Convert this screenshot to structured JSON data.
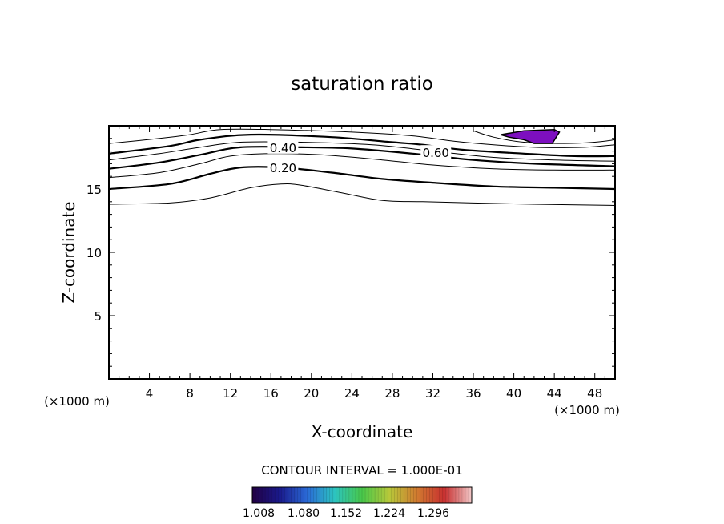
{
  "chart_data": {
    "type": "contour",
    "title": "saturation ratio",
    "xlabel": "X-coordinate",
    "ylabel": "Z-coordinate",
    "x_unit_left": "(×1000 m)",
    "x_unit_right": "(×1000 m)",
    "xlim": [
      0,
      50
    ],
    "ylim": [
      0,
      20
    ],
    "xticks": [
      "4",
      "8",
      "12",
      "16",
      "20",
      "24",
      "28",
      "32",
      "36",
      "40",
      "44",
      "48"
    ],
    "yticks": [
      "5",
      "10",
      "15"
    ],
    "contour_interval": "CONTOUR INTERVAL = 1.000E-01",
    "contour_labels": [
      {
        "text": "0.40",
        "x": 17.2,
        "y": 18.3
      },
      {
        "text": "0.20",
        "x": 17.2,
        "y": 16.7
      },
      {
        "text": "0.60",
        "x": 32.3,
        "y": 17.9
      }
    ],
    "contours": [
      {
        "level": "0.1",
        "bold": false,
        "points": [
          [
            0,
            13.8
          ],
          [
            6,
            13.9
          ],
          [
            10,
            14.3
          ],
          [
            14,
            15.1
          ],
          [
            17,
            15.4
          ],
          [
            19,
            15.3
          ],
          [
            23,
            14.7
          ],
          [
            27,
            14.1
          ],
          [
            31,
            14.0
          ],
          [
            36,
            13.9
          ],
          [
            42,
            13.8
          ],
          [
            50,
            13.7
          ]
        ]
      },
      {
        "level": "0.2",
        "bold": true,
        "points": [
          [
            0,
            15.0
          ],
          [
            6,
            15.4
          ],
          [
            10,
            16.2
          ],
          [
            13,
            16.7
          ],
          [
            17,
            16.7
          ],
          [
            22,
            16.3
          ],
          [
            27,
            15.8
          ],
          [
            32,
            15.5
          ],
          [
            38,
            15.2
          ],
          [
            44,
            15.1
          ],
          [
            50,
            15.0
          ]
        ]
      },
      {
        "level": "0.3",
        "bold": false,
        "points": [
          [
            0,
            15.9
          ],
          [
            5,
            16.3
          ],
          [
            9,
            17.0
          ],
          [
            12,
            17.6
          ],
          [
            16,
            17.8
          ],
          [
            21,
            17.7
          ],
          [
            27,
            17.3
          ],
          [
            32,
            16.9
          ],
          [
            38,
            16.6
          ],
          [
            44,
            16.5
          ],
          [
            50,
            16.5
          ]
        ]
      },
      {
        "level": "0.4",
        "bold": true,
        "points": [
          [
            0,
            16.6
          ],
          [
            5,
            17.1
          ],
          [
            9,
            17.7
          ],
          [
            13,
            18.3
          ],
          [
            19,
            18.3
          ],
          [
            24,
            18.2
          ],
          [
            30,
            17.8
          ],
          [
            36,
            17.3
          ],
          [
            42,
            17.0
          ],
          [
            50,
            16.8
          ]
        ]
      },
      {
        "level": "0.5",
        "bold": false,
        "points": [
          [
            0,
            17.3
          ],
          [
            5,
            17.8
          ],
          [
            9,
            18.3
          ],
          [
            13,
            18.7
          ],
          [
            19,
            18.7
          ],
          [
            26,
            18.5
          ],
          [
            32,
            18.0
          ],
          [
            38,
            17.5
          ],
          [
            44,
            17.3
          ],
          [
            50,
            17.2
          ]
        ]
      },
      {
        "level": "0.6",
        "bold": true,
        "points": [
          [
            0,
            17.8
          ],
          [
            6,
            18.4
          ],
          [
            9,
            18.9
          ],
          [
            14,
            19.3
          ],
          [
            22,
            19.1
          ],
          [
            28,
            18.7
          ],
          [
            31,
            18.5
          ],
          [
            35,
            18.1
          ],
          [
            41,
            17.8
          ],
          [
            46,
            17.6
          ],
          [
            50,
            17.6
          ]
        ]
      },
      {
        "level": "0.7",
        "bold": false,
        "points": [
          [
            0,
            18.6
          ],
          [
            5,
            19.0
          ],
          [
            8,
            19.3
          ],
          [
            11,
            19.7
          ],
          [
            16,
            19.7
          ],
          [
            24,
            19.5
          ],
          [
            30,
            19.2
          ],
          [
            35,
            18.7
          ],
          [
            42,
            18.3
          ],
          [
            47,
            18.3
          ],
          [
            50,
            18.5
          ]
        ]
      },
      {
        "level": "0.8",
        "bold": false,
        "points": [
          [
            36,
            19.6
          ],
          [
            38,
            19.1
          ],
          [
            41,
            18.7
          ],
          [
            45,
            18.6
          ],
          [
            48,
            18.7
          ],
          [
            50,
            18.9
          ]
        ]
      }
    ],
    "filled_region": {
      "value_range": "> 1.008",
      "color": "#7d0fbf",
      "points": [
        [
          38.7,
          19.3
        ],
        [
          41.0,
          19.6
        ],
        [
          44.0,
          19.7
        ],
        [
          44.5,
          19.5
        ],
        [
          43.8,
          18.6
        ],
        [
          42.0,
          18.6
        ],
        [
          41.0,
          18.9
        ],
        [
          39.5,
          19.1
        ]
      ]
    },
    "colorbar": {
      "labels": [
        "1.008",
        "1.080",
        "1.152",
        "1.224",
        "1.296"
      ],
      "stops": [
        "#220044",
        "#1a1a8c",
        "#2a6ad6",
        "#2cc4c0",
        "#48c84a",
        "#b8c83a",
        "#d07a30",
        "#c83030",
        "#f2c8c8"
      ]
    }
  }
}
